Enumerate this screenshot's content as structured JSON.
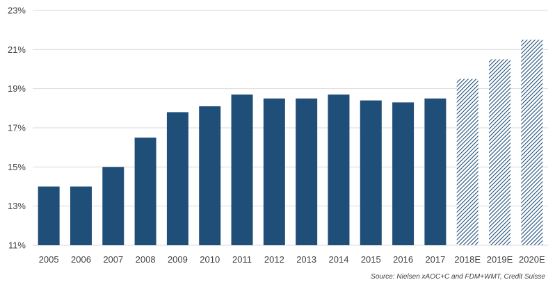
{
  "chart_data": {
    "type": "bar",
    "categories": [
      "2005",
      "2006",
      "2007",
      "2008",
      "2009",
      "2010",
      "2011",
      "2012",
      "2013",
      "2014",
      "2015",
      "2016",
      "2017",
      "2018E",
      "2019E",
      "2020E"
    ],
    "values": [
      14.0,
      14.0,
      15.0,
      16.5,
      17.8,
      18.1,
      18.7,
      18.5,
      18.5,
      18.7,
      18.4,
      18.3,
      18.5,
      19.5,
      20.5,
      21.5
    ],
    "estimated": [
      false,
      false,
      false,
      false,
      false,
      false,
      false,
      false,
      false,
      false,
      false,
      false,
      false,
      true,
      true,
      true
    ],
    "ylim": [
      11,
      23
    ],
    "yticks": [
      11,
      13,
      15,
      17,
      19,
      21,
      23
    ],
    "ytick_labels": [
      "11%",
      "13%",
      "15%",
      "17%",
      "19%",
      "21%",
      "23%"
    ],
    "grid": true,
    "bar_color": "#1f4e79",
    "grid_color": "#d9d9d9"
  },
  "source": "Source: Nielsen xAOC+C and FDM+WMT, Credit Suisse"
}
